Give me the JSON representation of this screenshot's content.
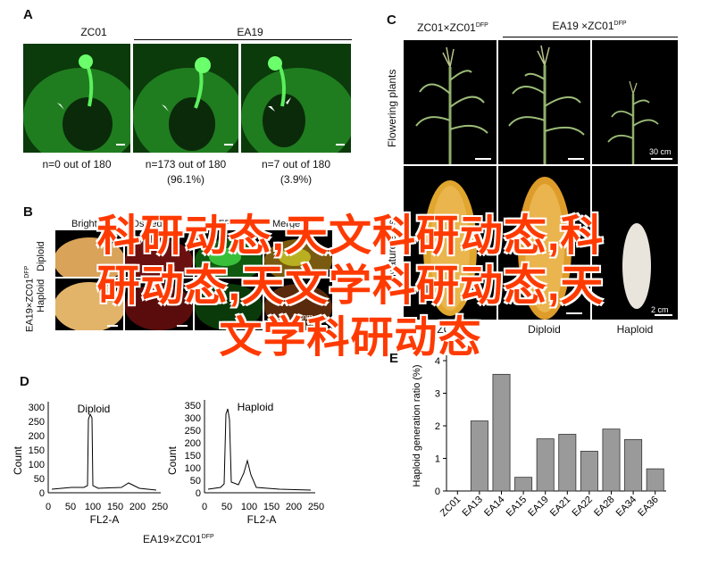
{
  "panelA": {
    "letter": "A",
    "header_left": "ZC01",
    "header_right": "EA19",
    "captions": [
      "n=0 out of 180",
      "n=173 out of 180",
      "(96.1%)",
      "n=7 out of 180",
      "(3.9%)"
    ]
  },
  "panelB": {
    "letter": "B",
    "columns": [
      "Bright",
      "DsRed2",
      "eGFP",
      "Merge"
    ],
    "row_label_1": "EA19×ZC01",
    "row_label_1_sup": "DFP",
    "row_label_2": "Haploid",
    "row_label_3": "Diploid",
    "scale": "2 mm"
  },
  "panelC": {
    "letter": "C",
    "header_left": "ZC01×ZC01",
    "header_left_sup": "DFP",
    "header_right": "EA19 ×ZC01",
    "header_right_sup": "DFP",
    "row1_label": "Flowering plants",
    "row2_label": "Mature ears",
    "scale1": "30 cm",
    "scale2": "2 cm",
    "captions": [
      "ZC01",
      "Diploid",
      "Haploid"
    ]
  },
  "panelD": {
    "letter": "D",
    "left_title": "Diploid",
    "right_title": "Haploid",
    "ylabel": "Count",
    "xlabel": "FL2-A",
    "left_yticks": [
      "0",
      "50",
      "100",
      "150",
      "200",
      "250",
      "300"
    ],
    "right_yticks": [
      "0",
      "50",
      "100",
      "150",
      "200",
      "250",
      "300",
      "350"
    ],
    "left_xticks": [
      "0",
      "50",
      "100",
      "150",
      "200",
      "250"
    ],
    "right_xticks": [
      "0",
      "50",
      "100",
      "150",
      "200",
      "250"
    ],
    "footer": "EA19×ZC01",
    "footer_sup": "DFP"
  },
  "panelE": {
    "letter": "E"
  },
  "watermark": {
    "line1": "科研动态,天文科研动态,科",
    "line2": "研动态,天文学科研动态,天",
    "line3": "文学科研动态"
  },
  "chart_data": {
    "type": "bar",
    "ylabel": "Haploid generation ratio (%)",
    "xlabel": "",
    "ylim": [
      0,
      4
    ],
    "yticks": [
      "0",
      "1",
      "2",
      "3",
      "4"
    ],
    "categories": [
      "ZC01",
      "EA13",
      "EA14",
      "EA15",
      "EA19",
      "EA21",
      "EA22",
      "EA28",
      "EA34",
      "EA36"
    ],
    "values": [
      0,
      2.15,
      3.58,
      0.42,
      1.6,
      1.74,
      1.22,
      1.9,
      1.58,
      0.68
    ],
    "bar_color": "#9a9a9a",
    "grid": false
  }
}
